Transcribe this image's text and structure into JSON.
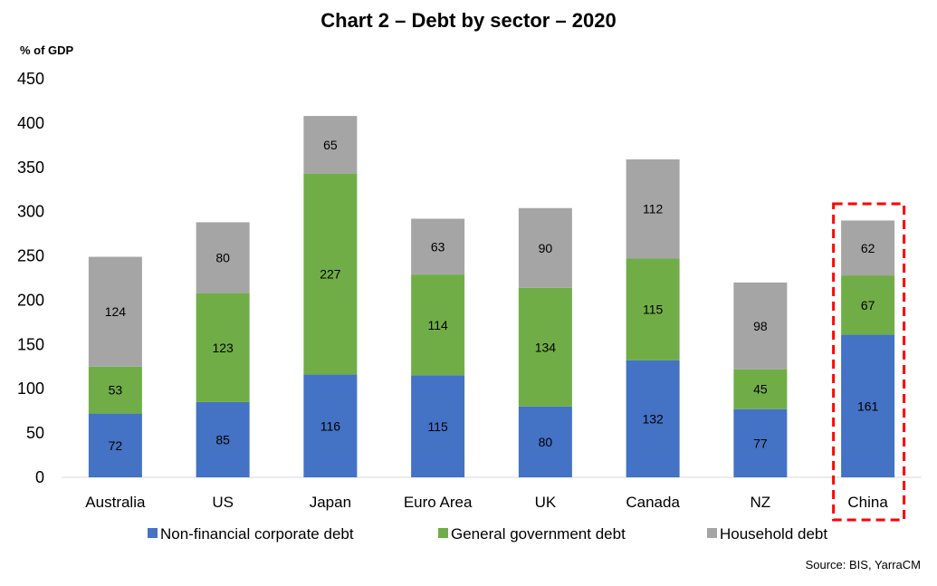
{
  "chart_data": {
    "type": "bar",
    "stacked": true,
    "title": "Chart 2 – Debt by sector – 2020",
    "ylabel": "% of GDP",
    "xlabel": "",
    "ylim": [
      0,
      450
    ],
    "yticks": [
      0,
      50,
      100,
      150,
      200,
      250,
      300,
      350,
      400,
      450
    ],
    "grid": false,
    "categories": [
      "Australia",
      "US",
      "Japan",
      "Euro Area",
      "UK",
      "Canada",
      "NZ",
      "China"
    ],
    "series": [
      {
        "name": "Non-financial corporate debt",
        "color": "#4472C4",
        "values": [
          72,
          85,
          116,
          115,
          80,
          132,
          77,
          161
        ]
      },
      {
        "name": "General government debt",
        "color": "#70AD47",
        "values": [
          53,
          123,
          227,
          114,
          134,
          115,
          45,
          67
        ]
      },
      {
        "name": "Household debt",
        "color": "#A5A5A5",
        "values": [
          124,
          80,
          65,
          63,
          90,
          112,
          98,
          62
        ]
      }
    ],
    "legend_position": "bottom",
    "highlight": {
      "category": "China",
      "style": "red dashed box",
      "color": "#FF0000"
    },
    "source": "Source: BIS, YarraCM"
  }
}
